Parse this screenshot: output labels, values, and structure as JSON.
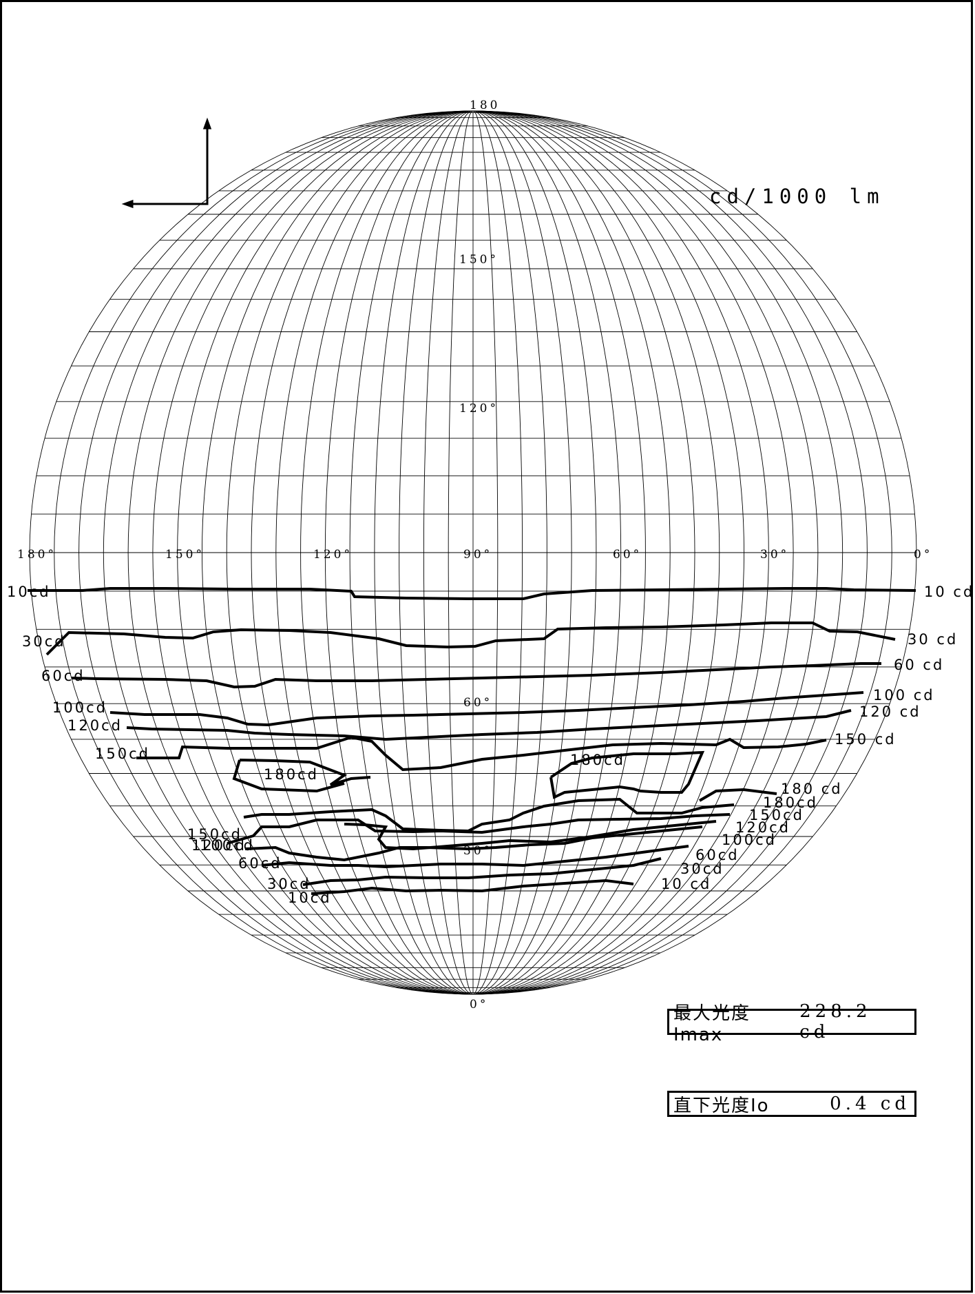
{
  "unit_label": "cd/1000 lm",
  "top_label": "180",
  "bottom_label": "0°",
  "c_plane_labels": [
    "180°",
    "150°",
    "120°",
    "90°",
    "60°",
    "30°",
    "0°"
  ],
  "gamma_labels": [
    "150°",
    "120°",
    "60°",
    "30°"
  ],
  "imax": {
    "name": "最大光度Imax",
    "value": "228.2 cd"
  },
  "io": {
    "name": "直下光度Io",
    "value": "0.4 cd"
  },
  "contour_labels": {
    "left": [
      "10cd",
      "30cd",
      "60cd",
      "100cd",
      "120cd",
      "150cd",
      "150cd",
      "120cd",
      "100cd",
      "60cd",
      "30cd",
      "10cd"
    ],
    "right": [
      "10 cd",
      "30 cd",
      "60 cd",
      "100 cd",
      "120 cd",
      "150 cd",
      "180 cd",
      "180cd",
      "150cd",
      "120cd",
      "100cd",
      "60cd",
      "30cd",
      "10 cd"
    ],
    "interior": [
      "180cd",
      "180cd"
    ]
  }
}
